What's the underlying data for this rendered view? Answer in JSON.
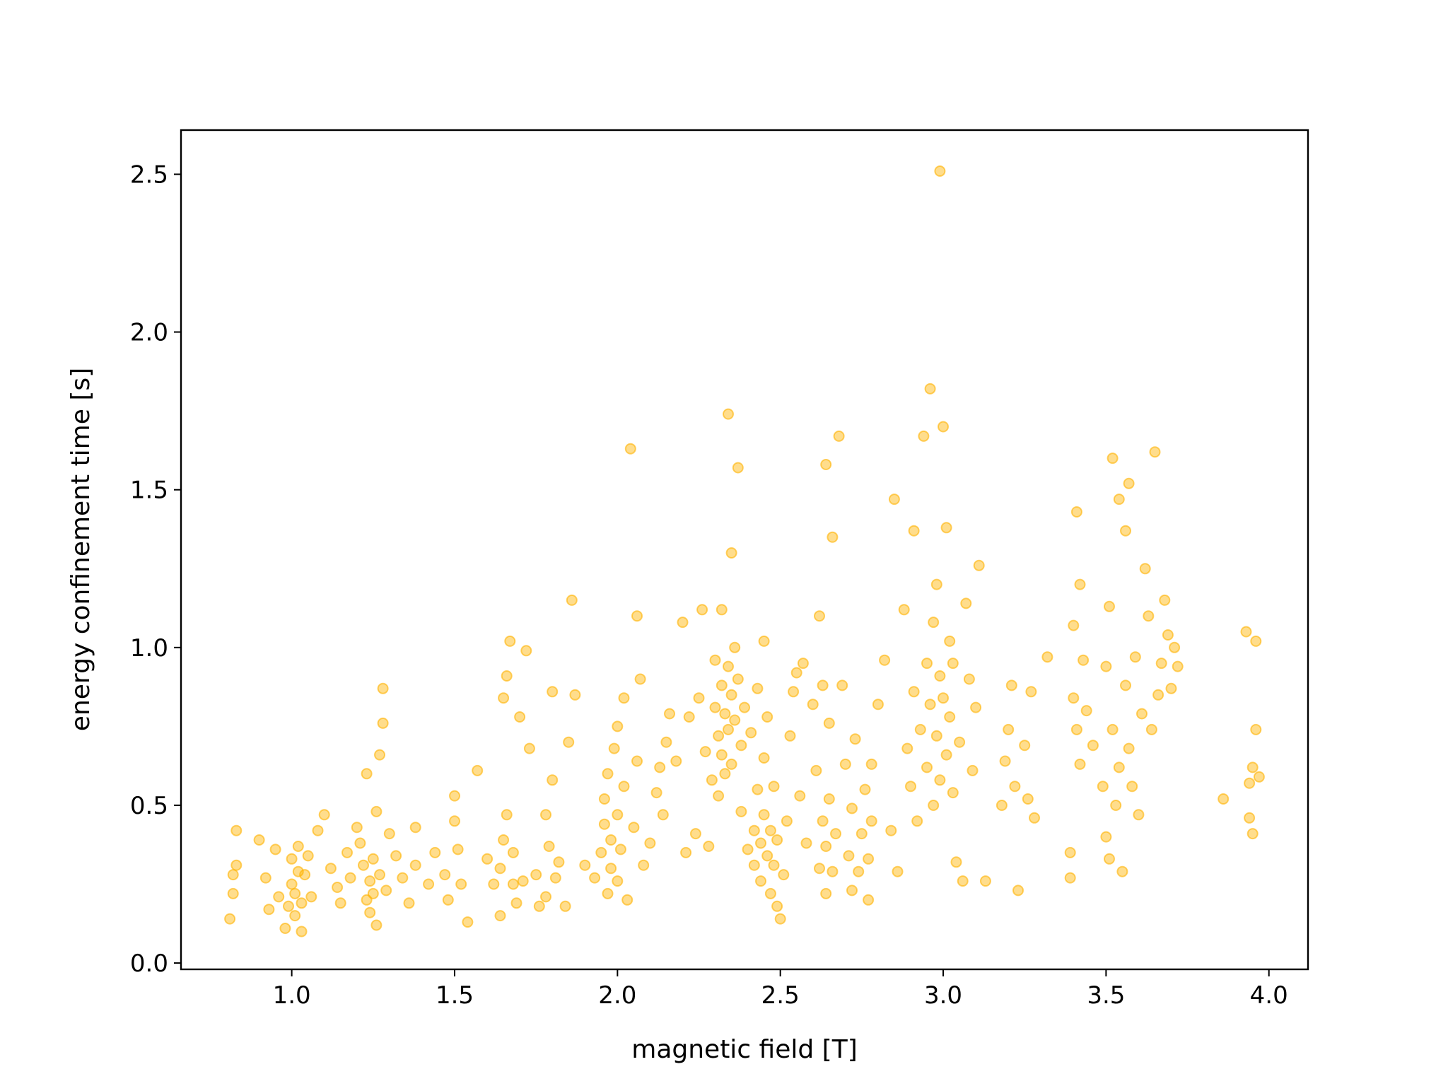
{
  "chart_data": {
    "type": "scatter",
    "title": "",
    "xlabel": "magnetic field [T]",
    "ylabel": "energy confinement time [s]",
    "xlim": [
      0.66,
      4.12
    ],
    "ylim": [
      -0.02,
      2.64
    ],
    "xticks": [
      1.0,
      1.5,
      2.0,
      2.5,
      3.0,
      3.5,
      4.0
    ],
    "xtick_labels": [
      "1.0",
      "1.5",
      "2.0",
      "2.5",
      "3.0",
      "3.5",
      "4.0"
    ],
    "yticks": [
      0.0,
      0.5,
      1.0,
      1.5,
      2.0,
      2.5
    ],
    "ytick_labels": [
      "0.0",
      "0.5",
      "1.0",
      "1.5",
      "2.0",
      "2.5"
    ],
    "grid": false,
    "legend": "none",
    "marker_color": "#ffb300",
    "marker_alpha": 0.45,
    "series": [
      {
        "points": [
          [
            0.81,
            0.14
          ],
          [
            0.82,
            0.22
          ],
          [
            0.82,
            0.28
          ],
          [
            0.83,
            0.42
          ],
          [
            0.83,
            0.31
          ],
          [
            0.9,
            0.39
          ],
          [
            0.92,
            0.27
          ],
          [
            0.93,
            0.17
          ],
          [
            0.95,
            0.36
          ],
          [
            0.96,
            0.21
          ],
          [
            0.98,
            0.11
          ],
          [
            0.99,
            0.18
          ],
          [
            1.0,
            0.25
          ],
          [
            1.0,
            0.33
          ],
          [
            1.01,
            0.15
          ],
          [
            1.01,
            0.22
          ],
          [
            1.02,
            0.29
          ],
          [
            1.02,
            0.37
          ],
          [
            1.03,
            0.19
          ],
          [
            1.03,
            0.1
          ],
          [
            1.04,
            0.28
          ],
          [
            1.05,
            0.34
          ],
          [
            1.06,
            0.21
          ],
          [
            1.08,
            0.42
          ],
          [
            1.1,
            0.47
          ],
          [
            1.12,
            0.3
          ],
          [
            1.14,
            0.24
          ],
          [
            1.15,
            0.19
          ],
          [
            1.17,
            0.35
          ],
          [
            1.18,
            0.27
          ],
          [
            1.2,
            0.43
          ],
          [
            1.21,
            0.38
          ],
          [
            1.22,
            0.31
          ],
          [
            1.23,
            0.2
          ],
          [
            1.23,
            0.6
          ],
          [
            1.24,
            0.26
          ],
          [
            1.24,
            0.16
          ],
          [
            1.25,
            0.22
          ],
          [
            1.25,
            0.33
          ],
          [
            1.26,
            0.12
          ],
          [
            1.26,
            0.48
          ],
          [
            1.27,
            0.28
          ],
          [
            1.27,
            0.66
          ],
          [
            1.28,
            0.76
          ],
          [
            1.28,
            0.87
          ],
          [
            1.29,
            0.23
          ],
          [
            1.3,
            0.41
          ],
          [
            1.32,
            0.34
          ],
          [
            1.34,
            0.27
          ],
          [
            1.36,
            0.19
          ],
          [
            1.38,
            0.43
          ],
          [
            1.38,
            0.31
          ],
          [
            1.42,
            0.25
          ],
          [
            1.44,
            0.35
          ],
          [
            1.47,
            0.28
          ],
          [
            1.48,
            0.2
          ],
          [
            1.5,
            0.53
          ],
          [
            1.5,
            0.45
          ],
          [
            1.51,
            0.36
          ],
          [
            1.52,
            0.25
          ],
          [
            1.54,
            0.13
          ],
          [
            1.57,
            0.61
          ],
          [
            1.6,
            0.33
          ],
          [
            1.62,
            0.25
          ],
          [
            1.64,
            0.15
          ],
          [
            1.64,
            0.3
          ],
          [
            1.65,
            0.39
          ],
          [
            1.65,
            0.84
          ],
          [
            1.66,
            0.47
          ],
          [
            1.66,
            0.91
          ],
          [
            1.67,
            1.02
          ],
          [
            1.68,
            0.25
          ],
          [
            1.68,
            0.35
          ],
          [
            1.69,
            0.19
          ],
          [
            1.7,
            0.78
          ],
          [
            1.71,
            0.26
          ],
          [
            1.72,
            0.99
          ],
          [
            1.73,
            0.68
          ],
          [
            1.75,
            0.28
          ],
          [
            1.76,
            0.18
          ],
          [
            1.78,
            0.21
          ],
          [
            1.78,
            0.47
          ],
          [
            1.79,
            0.37
          ],
          [
            1.8,
            0.58
          ],
          [
            1.8,
            0.86
          ],
          [
            1.81,
            0.27
          ],
          [
            1.82,
            0.32
          ],
          [
            1.84,
            0.18
          ],
          [
            1.85,
            0.7
          ],
          [
            1.86,
            1.15
          ],
          [
            1.87,
            0.85
          ],
          [
            1.9,
            0.31
          ],
          [
            1.93,
            0.27
          ],
          [
            1.95,
            0.35
          ],
          [
            1.96,
            0.44
          ],
          [
            1.96,
            0.52
          ],
          [
            1.97,
            0.22
          ],
          [
            1.97,
            0.6
          ],
          [
            1.98,
            0.3
          ],
          [
            1.98,
            0.39
          ],
          [
            1.99,
            0.68
          ],
          [
            2.0,
            0.47
          ],
          [
            2.0,
            0.26
          ],
          [
            2.0,
            0.75
          ],
          [
            2.01,
            0.36
          ],
          [
            2.02,
            0.84
          ],
          [
            2.02,
            0.56
          ],
          [
            2.03,
            0.2
          ],
          [
            2.04,
            1.63
          ],
          [
            2.05,
            0.43
          ],
          [
            2.06,
            1.1
          ],
          [
            2.06,
            0.64
          ],
          [
            2.07,
            0.9
          ],
          [
            2.08,
            0.31
          ],
          [
            2.1,
            0.38
          ],
          [
            2.12,
            0.54
          ],
          [
            2.13,
            0.62
          ],
          [
            2.14,
            0.47
          ],
          [
            2.15,
            0.7
          ],
          [
            2.16,
            0.79
          ],
          [
            2.18,
            0.64
          ],
          [
            2.2,
            1.08
          ],
          [
            2.21,
            0.35
          ],
          [
            2.22,
            0.78
          ],
          [
            2.24,
            0.41
          ],
          [
            2.25,
            0.84
          ],
          [
            2.26,
            1.12
          ],
          [
            2.27,
            0.67
          ],
          [
            2.28,
            0.37
          ],
          [
            2.29,
            0.58
          ],
          [
            2.3,
            0.81
          ],
          [
            2.3,
            0.96
          ],
          [
            2.31,
            0.72
          ],
          [
            2.31,
            0.53
          ],
          [
            2.32,
            0.88
          ],
          [
            2.32,
            0.66
          ],
          [
            2.32,
            1.12
          ],
          [
            2.33,
            0.79
          ],
          [
            2.33,
            0.6
          ],
          [
            2.34,
            0.94
          ],
          [
            2.34,
            0.74
          ],
          [
            2.34,
            1.74
          ],
          [
            2.35,
            0.85
          ],
          [
            2.35,
            0.63
          ],
          [
            2.35,
            1.3
          ],
          [
            2.36,
            1.0
          ],
          [
            2.36,
            0.77
          ],
          [
            2.37,
            1.57
          ],
          [
            2.37,
            0.9
          ],
          [
            2.38,
            0.69
          ],
          [
            2.38,
            0.48
          ],
          [
            2.39,
            0.81
          ],
          [
            2.4,
            0.36
          ],
          [
            2.41,
            0.73
          ],
          [
            2.42,
            0.42
          ],
          [
            2.42,
            0.31
          ],
          [
            2.43,
            0.87
          ],
          [
            2.43,
            0.55
          ],
          [
            2.44,
            0.38
          ],
          [
            2.44,
            0.26
          ],
          [
            2.45,
            0.65
          ],
          [
            2.45,
            0.47
          ],
          [
            2.45,
            1.02
          ],
          [
            2.46,
            0.34
          ],
          [
            2.46,
            0.78
          ],
          [
            2.47,
            0.42
          ],
          [
            2.47,
            0.22
          ],
          [
            2.48,
            0.56
          ],
          [
            2.48,
            0.31
          ],
          [
            2.49,
            0.39
          ],
          [
            2.49,
            0.18
          ],
          [
            2.5,
            0.14
          ],
          [
            2.51,
            0.28
          ],
          [
            2.52,
            0.45
          ],
          [
            2.53,
            0.72
          ],
          [
            2.54,
            0.86
          ],
          [
            2.55,
            0.92
          ],
          [
            2.56,
            0.53
          ],
          [
            2.57,
            0.95
          ],
          [
            2.58,
            0.38
          ],
          [
            2.6,
            0.82
          ],
          [
            2.61,
            0.61
          ],
          [
            2.62,
            0.3
          ],
          [
            2.62,
            1.1
          ],
          [
            2.63,
            0.45
          ],
          [
            2.63,
            0.88
          ],
          [
            2.64,
            0.22
          ],
          [
            2.64,
            0.37
          ],
          [
            2.64,
            1.58
          ],
          [
            2.65,
            0.52
          ],
          [
            2.65,
            0.76
          ],
          [
            2.66,
            0.29
          ],
          [
            2.66,
            1.35
          ],
          [
            2.67,
            0.41
          ],
          [
            2.68,
            1.67
          ],
          [
            2.69,
            0.88
          ],
          [
            2.7,
            0.63
          ],
          [
            2.71,
            0.34
          ],
          [
            2.72,
            0.49
          ],
          [
            2.72,
            0.23
          ],
          [
            2.73,
            0.71
          ],
          [
            2.74,
            0.29
          ],
          [
            2.75,
            0.41
          ],
          [
            2.76,
            0.55
          ],
          [
            2.77,
            0.33
          ],
          [
            2.77,
            0.2
          ],
          [
            2.78,
            0.45
          ],
          [
            2.78,
            0.63
          ],
          [
            2.8,
            0.82
          ],
          [
            2.82,
            0.96
          ],
          [
            2.84,
            0.42
          ],
          [
            2.85,
            1.47
          ],
          [
            2.86,
            0.29
          ],
          [
            2.88,
            1.12
          ],
          [
            2.89,
            0.68
          ],
          [
            2.9,
            0.56
          ],
          [
            2.91,
            0.86
          ],
          [
            2.91,
            1.37
          ],
          [
            2.92,
            0.45
          ],
          [
            2.93,
            0.74
          ],
          [
            2.94,
            1.67
          ],
          [
            2.95,
            0.95
          ],
          [
            2.95,
            0.62
          ],
          [
            2.96,
            1.82
          ],
          [
            2.96,
            0.82
          ],
          [
            2.97,
            0.5
          ],
          [
            2.97,
            1.08
          ],
          [
            2.98,
            0.72
          ],
          [
            2.98,
            1.2
          ],
          [
            2.99,
            0.91
          ],
          [
            2.99,
            0.58
          ],
          [
            2.99,
            2.51
          ],
          [
            3.0,
            1.7
          ],
          [
            3.0,
            0.84
          ],
          [
            3.01,
            0.66
          ],
          [
            3.01,
            1.38
          ],
          [
            3.02,
            1.02
          ],
          [
            3.02,
            0.78
          ],
          [
            3.03,
            0.54
          ],
          [
            3.03,
            0.95
          ],
          [
            3.04,
            0.32
          ],
          [
            3.05,
            0.7
          ],
          [
            3.06,
            0.26
          ],
          [
            3.07,
            1.14
          ],
          [
            3.08,
            0.9
          ],
          [
            3.09,
            0.61
          ],
          [
            3.1,
            0.81
          ],
          [
            3.11,
            1.26
          ],
          [
            3.13,
            0.26
          ],
          [
            3.18,
            0.5
          ],
          [
            3.19,
            0.64
          ],
          [
            3.2,
            0.74
          ],
          [
            3.21,
            0.88
          ],
          [
            3.22,
            0.56
          ],
          [
            3.23,
            0.23
          ],
          [
            3.25,
            0.69
          ],
          [
            3.26,
            0.52
          ],
          [
            3.27,
            0.86
          ],
          [
            3.28,
            0.46
          ],
          [
            3.32,
            0.97
          ],
          [
            3.39,
            0.35
          ],
          [
            3.39,
            0.27
          ],
          [
            3.4,
            1.07
          ],
          [
            3.4,
            0.84
          ],
          [
            3.41,
            0.74
          ],
          [
            3.41,
            1.43
          ],
          [
            3.42,
            1.2
          ],
          [
            3.42,
            0.63
          ],
          [
            3.43,
            0.96
          ],
          [
            3.44,
            0.8
          ],
          [
            3.46,
            0.69
          ],
          [
            3.49,
            0.56
          ],
          [
            3.5,
            0.4
          ],
          [
            3.5,
            0.94
          ],
          [
            3.51,
            1.13
          ],
          [
            3.51,
            0.33
          ],
          [
            3.52,
            1.6
          ],
          [
            3.52,
            0.74
          ],
          [
            3.53,
            0.5
          ],
          [
            3.54,
            1.47
          ],
          [
            3.54,
            0.62
          ],
          [
            3.55,
            0.29
          ],
          [
            3.56,
            1.37
          ],
          [
            3.56,
            0.88
          ],
          [
            3.57,
            1.52
          ],
          [
            3.57,
            0.68
          ],
          [
            3.58,
            0.56
          ],
          [
            3.59,
            0.97
          ],
          [
            3.6,
            0.47
          ],
          [
            3.61,
            0.79
          ],
          [
            3.62,
            1.25
          ],
          [
            3.63,
            1.1
          ],
          [
            3.64,
            0.74
          ],
          [
            3.65,
            1.62
          ],
          [
            3.66,
            0.85
          ],
          [
            3.67,
            0.95
          ],
          [
            3.68,
            1.15
          ],
          [
            3.69,
            1.04
          ],
          [
            3.7,
            0.87
          ],
          [
            3.71,
            1.0
          ],
          [
            3.72,
            0.94
          ],
          [
            3.86,
            0.52
          ],
          [
            3.93,
            1.05
          ],
          [
            3.94,
            0.46
          ],
          [
            3.94,
            0.57
          ],
          [
            3.95,
            0.62
          ],
          [
            3.95,
            0.41
          ],
          [
            3.96,
            1.02
          ],
          [
            3.96,
            0.74
          ],
          [
            3.97,
            0.59
          ]
        ]
      }
    ]
  }
}
